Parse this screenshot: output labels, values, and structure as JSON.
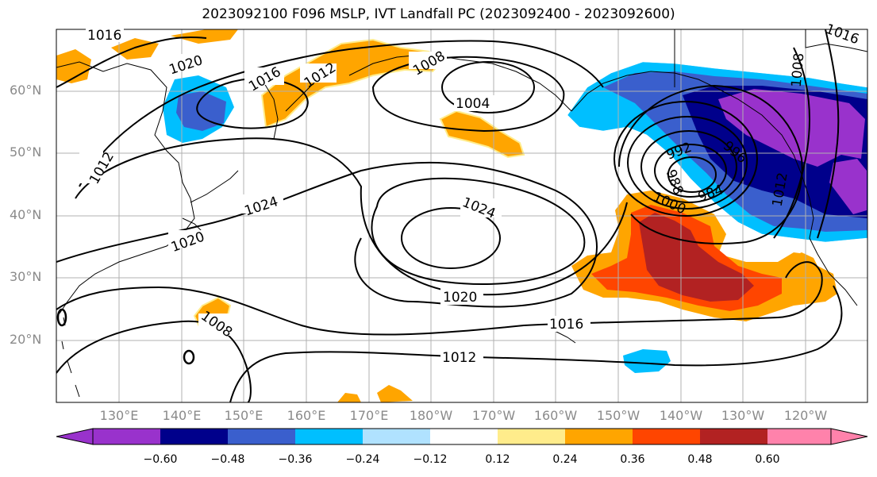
{
  "title": "2023092100 F096 MSLP, IVT Landfall PC (2023092400 - 2023092600)",
  "lat_labels": [
    "60°N",
    "50°N",
    "40°N",
    "30°N",
    "20°N"
  ],
  "lon_labels": [
    "130°E",
    "140°E",
    "150°E",
    "160°E",
    "170°E",
    "180°W",
    "170°W",
    "160°W",
    "150°W",
    "140°W",
    "130°W",
    "120°W"
  ],
  "isobar_labels": [
    "1016",
    "1020",
    "1016",
    "1012",
    "1008",
    "1004",
    "1012",
    "1024",
    "1024",
    "1020",
    "1020",
    "1016",
    "1012",
    "1008",
    "992",
    "996",
    "988",
    "984",
    "1000",
    "1008",
    "1012",
    "1016"
  ],
  "colorbar": {
    "colors": [
      "#9932CC",
      "#00008B",
      "#3A5FCD",
      "#00BFFF",
      "#B0E2FF",
      "#FFFFFF",
      "#FFEC8B",
      "#FFA500",
      "#FF4500",
      "#B22222",
      "#FF82AB"
    ],
    "tick_labels": [
      "−0.60",
      "−0.48",
      "−0.36",
      "−0.24",
      "−0.12",
      "0.12",
      "0.24",
      "0.36",
      "0.48",
      "0.60"
    ]
  }
}
